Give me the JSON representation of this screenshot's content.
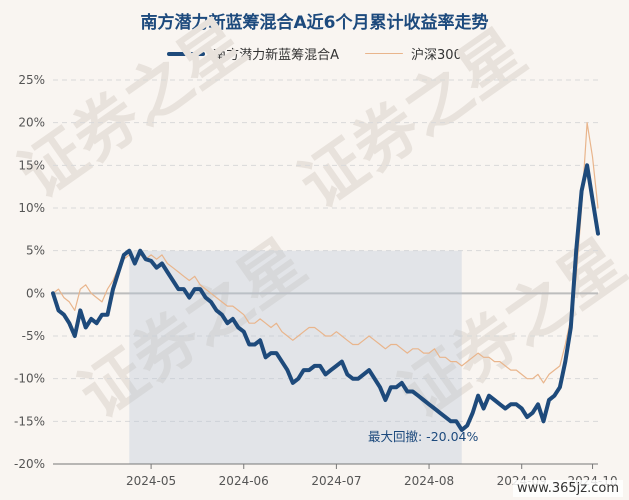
{
  "title": "南方潜力新蓝筹混合A近6个月累计收益率走势",
  "legend": {
    "fund": "南方潜力新蓝筹混合A",
    "index": "沪深300"
  },
  "colors": {
    "fund": "#1e4a7b",
    "index": "#e9b58c",
    "drawdown_fill": "#b8c7d8",
    "grid": "#d9d9d9",
    "watermark_text": "#e8e2dc"
  },
  "max_drawdown_label": "最大回撤: -20.04%",
  "background_watermark": "证券之星",
  "corner_watermark": "www.365jz.com",
  "chart_data": {
    "type": "line",
    "title": "南方潜力新蓝筹混合A近6个月累计收益率走势",
    "xlabel": "",
    "ylabel": "",
    "ylim": [
      -20,
      25
    ],
    "yticks": [
      "25%",
      "20%",
      "15%",
      "10%",
      "5%",
      "0%",
      "-5%",
      "-10%",
      "-15%",
      "-20%"
    ],
    "ytick_values": [
      25,
      20,
      15,
      10,
      5,
      0,
      -5,
      -10,
      -15,
      -20
    ],
    "xticks": [
      "2024-05",
      "2024-06",
      "2024-07",
      "2024-08",
      "2024-09",
      "2024-10"
    ],
    "xtick_positions": [
      0.18,
      0.35,
      0.52,
      0.69,
      0.86,
      0.99
    ],
    "grid": "horizontal dashed",
    "legend_position": "top-center",
    "series": [
      {
        "name": "南方潜力新蓝筹混合A",
        "x": [
          0.0,
          0.01,
          0.02,
          0.03,
          0.04,
          0.05,
          0.06,
          0.07,
          0.08,
          0.09,
          0.1,
          0.11,
          0.12,
          0.13,
          0.14,
          0.15,
          0.16,
          0.17,
          0.18,
          0.19,
          0.2,
          0.21,
          0.22,
          0.23,
          0.24,
          0.25,
          0.26,
          0.27,
          0.28,
          0.29,
          0.3,
          0.31,
          0.32,
          0.33,
          0.34,
          0.35,
          0.36,
          0.37,
          0.38,
          0.39,
          0.4,
          0.41,
          0.42,
          0.43,
          0.44,
          0.45,
          0.46,
          0.47,
          0.48,
          0.49,
          0.5,
          0.51,
          0.52,
          0.53,
          0.54,
          0.55,
          0.56,
          0.57,
          0.58,
          0.59,
          0.6,
          0.61,
          0.62,
          0.63,
          0.64,
          0.65,
          0.66,
          0.67,
          0.68,
          0.69,
          0.7,
          0.71,
          0.72,
          0.73,
          0.74,
          0.75,
          0.76,
          0.77,
          0.78,
          0.79,
          0.8,
          0.81,
          0.82,
          0.83,
          0.84,
          0.85,
          0.86,
          0.87,
          0.88,
          0.89,
          0.9,
          0.91,
          0.92,
          0.93,
          0.94,
          0.95,
          0.96,
          0.97,
          0.98,
          0.99,
          1.0
        ],
        "values": [
          0.0,
          -2.0,
          -2.5,
          -3.5,
          -5.0,
          -2.0,
          -4.0,
          -3.0,
          -3.5,
          -2.5,
          -2.5,
          0.5,
          2.5,
          4.5,
          5.0,
          3.5,
          5.0,
          4.0,
          3.8,
          3.0,
          3.5,
          2.5,
          1.5,
          0.5,
          0.5,
          -0.5,
          0.5,
          0.5,
          -0.5,
          -1.0,
          -2.0,
          -2.5,
          -3.5,
          -3.0,
          -4.0,
          -4.5,
          -6.0,
          -6.0,
          -5.5,
          -7.5,
          -7.0,
          -7.0,
          -8.0,
          -9.0,
          -10.5,
          -10.0,
          -9.0,
          -9.0,
          -8.5,
          -8.5,
          -9.5,
          -9.0,
          -8.5,
          -8.0,
          -9.5,
          -10.0,
          -10.0,
          -9.5,
          -9.0,
          -10.0,
          -11.0,
          -12.5,
          -11.0,
          -11.0,
          -10.5,
          -11.5,
          -11.5,
          -12.0,
          -12.5,
          -13.0,
          -13.5,
          -14.0,
          -14.5,
          -15.0,
          -15.0,
          -16.0,
          -15.5,
          -14.0,
          -12.0,
          -13.5,
          -12.0,
          -12.5,
          -13.0,
          -13.5,
          -13.0,
          -13.0,
          -13.5,
          -14.5,
          -14.0,
          -13.0,
          -15.0,
          -12.5,
          -12.0,
          -11.0,
          -8.0,
          -4.0,
          5.0,
          12.0,
          15.0,
          11.0,
          7.0
        ],
        "color": "#1e4a7b"
      },
      {
        "name": "沪深300",
        "x": [
          0.0,
          0.01,
          0.02,
          0.03,
          0.04,
          0.05,
          0.06,
          0.07,
          0.08,
          0.09,
          0.1,
          0.11,
          0.12,
          0.13,
          0.14,
          0.15,
          0.16,
          0.17,
          0.18,
          0.19,
          0.2,
          0.21,
          0.22,
          0.23,
          0.24,
          0.25,
          0.26,
          0.27,
          0.28,
          0.29,
          0.3,
          0.31,
          0.32,
          0.33,
          0.34,
          0.35,
          0.36,
          0.37,
          0.38,
          0.39,
          0.4,
          0.41,
          0.42,
          0.43,
          0.44,
          0.45,
          0.46,
          0.47,
          0.48,
          0.49,
          0.5,
          0.51,
          0.52,
          0.53,
          0.54,
          0.55,
          0.56,
          0.57,
          0.58,
          0.59,
          0.6,
          0.61,
          0.62,
          0.63,
          0.64,
          0.65,
          0.66,
          0.67,
          0.68,
          0.69,
          0.7,
          0.71,
          0.72,
          0.73,
          0.74,
          0.75,
          0.76,
          0.77,
          0.78,
          0.79,
          0.8,
          0.81,
          0.82,
          0.83,
          0.84,
          0.85,
          0.86,
          0.87,
          0.88,
          0.89,
          0.9,
          0.91,
          0.92,
          0.93,
          0.94,
          0.95,
          0.96,
          0.97,
          0.98,
          0.99,
          1.0
        ],
        "values": [
          0.0,
          0.5,
          -0.5,
          -1.0,
          -2.0,
          0.5,
          1.0,
          0.0,
          -0.5,
          -1.0,
          0.5,
          1.5,
          3.0,
          4.0,
          4.5,
          4.0,
          4.5,
          4.0,
          4.5,
          4.0,
          4.5,
          3.5,
          3.0,
          2.5,
          2.0,
          1.5,
          2.0,
          1.0,
          0.5,
          0.0,
          -0.5,
          -1.0,
          -1.5,
          -1.5,
          -2.0,
          -2.5,
          -3.5,
          -3.5,
          -3.0,
          -3.5,
          -4.0,
          -3.5,
          -4.5,
          -5.0,
          -5.5,
          -5.0,
          -4.5,
          -4.0,
          -4.0,
          -4.5,
          -5.0,
          -5.0,
          -4.5,
          -5.0,
          -5.5,
          -6.0,
          -6.0,
          -5.5,
          -5.0,
          -5.5,
          -6.0,
          -6.5,
          -6.0,
          -6.0,
          -6.5,
          -7.0,
          -6.5,
          -6.5,
          -7.0,
          -7.0,
          -6.5,
          -7.5,
          -7.5,
          -8.0,
          -8.0,
          -8.5,
          -8.0,
          -7.5,
          -7.0,
          -7.5,
          -7.5,
          -8.0,
          -8.0,
          -8.5,
          -9.0,
          -9.0,
          -9.5,
          -10.0,
          -10.0,
          -9.5,
          -10.5,
          -9.5,
          -9.0,
          -8.5,
          -6.0,
          -3.0,
          2.0,
          10.0,
          20.0,
          16.0,
          10.0
        ],
        "color": "#e9b58c"
      }
    ]
  }
}
